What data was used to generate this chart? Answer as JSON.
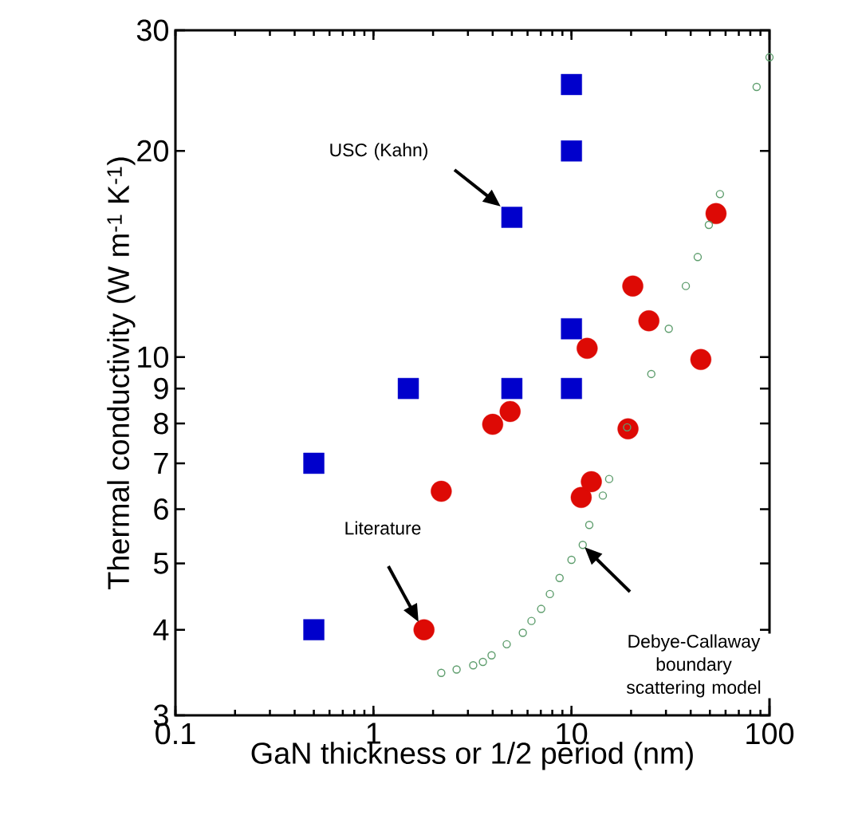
{
  "chart_data": {
    "type": "scatter",
    "xlabel": "GaN thickness or 1/2 period (nm)",
    "ylabel": "Thermal conductivity (W m$^{-1}$ K$^{-1}$)",
    "log": "xy",
    "xlim": [
      0.1,
      100
    ],
    "ylim": [
      3,
      30
    ],
    "xticks": [
      0.1,
      1,
      10,
      100
    ],
    "yticks": [
      3,
      4,
      5,
      6,
      7,
      8,
      9,
      10,
      20,
      30
    ],
    "grid": false,
    "series": [
      {
        "color": "#0000cc",
        "marker": "square",
        "x": [
          0.5,
          0.5,
          1.5,
          5,
          5,
          10,
          10,
          10,
          10
        ],
        "values": [
          7,
          4,
          9,
          16,
          9,
          25,
          20,
          11,
          9
        ]
      },
      {
        "color": "#dd0a05",
        "marker": "circle",
        "x": [
          1.8,
          2.2,
          4,
          4.9,
          11.2,
          12,
          12.6,
          19.3,
          20.4,
          24.6,
          45,
          53.7
        ],
        "values": [
          4,
          6.37,
          7.98,
          8.33,
          6.24,
          10.3,
          6.58,
          7.86,
          12.7,
          11.3,
          9.92,
          16.2
        ]
      },
      {
        "color": "#5f9e6e",
        "marker": "circle",
        "x": [
          2.2,
          2.63,
          3.19,
          3.57,
          3.95,
          4.71,
          5.68,
          6.28,
          7.03,
          7.78,
          8.71,
          10,
          11.4,
          12.3,
          14.4,
          15.5,
          19.1,
          25.3,
          31,
          37.8,
          43.4,
          49.4,
          56.2,
          86.1,
          100
        ],
        "values": [
          3.46,
          3.5,
          3.55,
          3.59,
          3.67,
          3.81,
          3.96,
          4.12,
          4.29,
          4.51,
          4.76,
          5.06,
          5.32,
          5.69,
          6.28,
          6.64,
          7.9,
          9.45,
          11,
          12.7,
          14,
          15.6,
          17.3,
          24.8,
          27.4
        ]
      }
    ],
    "annotations": [
      "USC (Kahn)",
      "Literature",
      "Debye-Callaway boundary scattering model"
    ]
  }
}
